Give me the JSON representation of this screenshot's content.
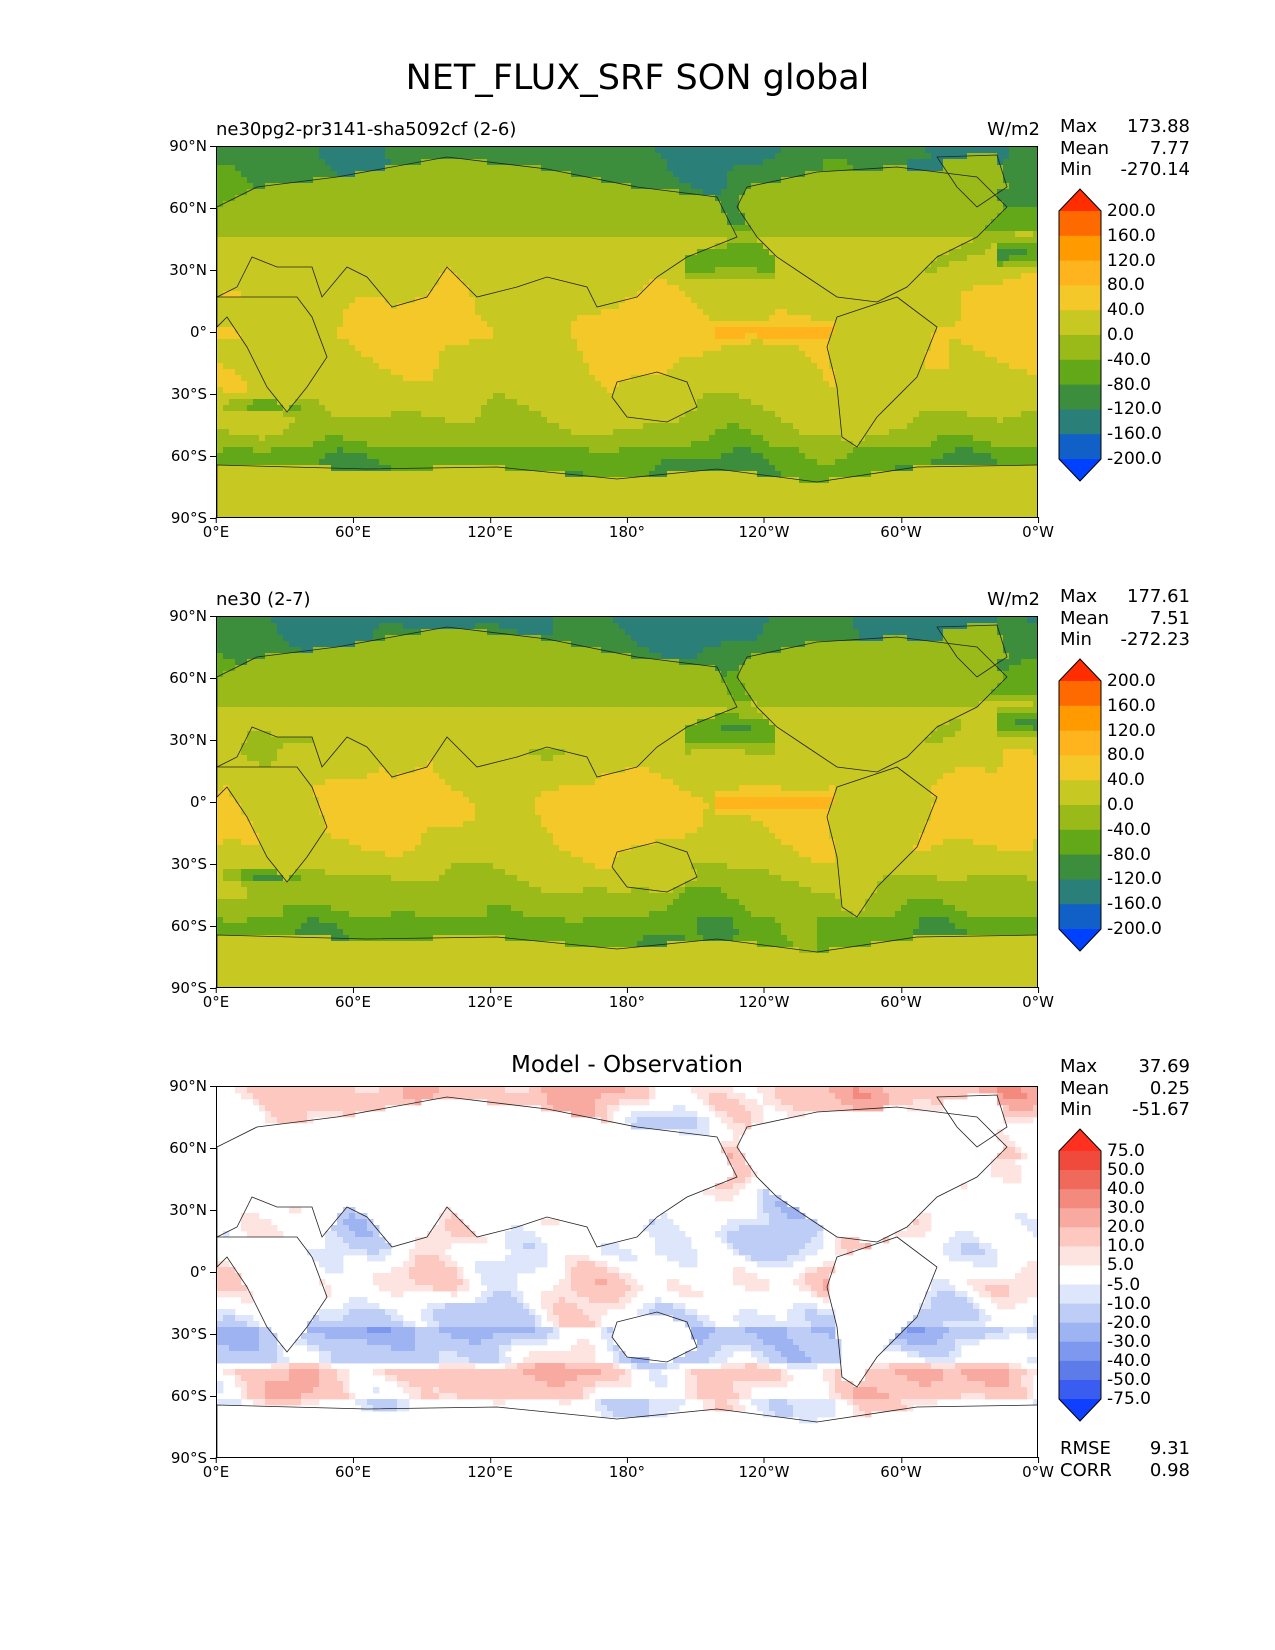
{
  "figure_title": "NET_FLUX_SRF SON global",
  "lat_ticks": [
    "90°N",
    "60°N",
    "30°N",
    "0°",
    "30°S",
    "60°S",
    "90°S"
  ],
  "lon_ticks": [
    "0°E",
    "60°E",
    "120°E",
    "180°",
    "120°W",
    "60°W",
    "0°W"
  ],
  "panels": [
    {
      "title_left": "ne30pg2-pr3141-sha5092cf (2-6)",
      "units": "W/m2",
      "stats": {
        "max_label": "Max",
        "max": "173.88",
        "mean_label": "Mean",
        "mean": "7.77",
        "min_label": "Min",
        "min": "-270.14"
      },
      "colorbar_labels": [
        "200.0",
        "160.0",
        "120.0",
        "80.0",
        "40.0",
        "0.0",
        "-40.0",
        "-80.0",
        "-120.0",
        "-160.0",
        "-200.0"
      ],
      "colorbar_colors": [
        "#ff2d00",
        "#ff6a00",
        "#ff9a00",
        "#ffb41e",
        "#f5c82a",
        "#c8c822",
        "#9aba1a",
        "#62a818",
        "#3c8e3c",
        "#2a8078",
        "#1060c8",
        "#0040ff"
      ]
    },
    {
      "title_left": "ne30 (2-7)",
      "units": "W/m2",
      "stats": {
        "max_label": "Max",
        "max": "177.61",
        "mean_label": "Mean",
        "mean": "7.51",
        "min_label": "Min",
        "min": "-272.23"
      },
      "colorbar_labels": [
        "200.0",
        "160.0",
        "120.0",
        "80.0",
        "40.0",
        "0.0",
        "-40.0",
        "-80.0",
        "-120.0",
        "-160.0",
        "-200.0"
      ],
      "colorbar_colors": [
        "#ff2d00",
        "#ff6a00",
        "#ff9a00",
        "#ffb41e",
        "#f5c82a",
        "#c8c822",
        "#9aba1a",
        "#62a818",
        "#3c8e3c",
        "#2a8078",
        "#1060c8",
        "#0040ff"
      ]
    },
    {
      "title_center": "Model - Observation",
      "stats": {
        "max_label": "Max",
        "max": "37.69",
        "mean_label": "Mean",
        "mean": "0.25",
        "min_label": "Min",
        "min": "-51.67"
      },
      "colorbar_labels": [
        "75.0",
        "50.0",
        "40.0",
        "30.0",
        "20.0",
        "10.0",
        "5.0",
        "-5.0",
        "-10.0",
        "-20.0",
        "-30.0",
        "-40.0",
        "-50.0",
        "-75.0"
      ],
      "colorbar_colors": [
        "#ff3020",
        "#f04a3c",
        "#f06a5c",
        "#f48a7e",
        "#f8aaa0",
        "#fcc8c0",
        "#fde4e0",
        "#ffffff",
        "#dde6fb",
        "#bdcdf6",
        "#9db3f2",
        "#7d98ee",
        "#5d7cea",
        "#3a5cf0",
        "#1040ff"
      ],
      "footer": {
        "rmse_label": "RMSE",
        "rmse": "9.31",
        "corr_label": "CORR",
        "corr": "0.98"
      }
    }
  ]
}
